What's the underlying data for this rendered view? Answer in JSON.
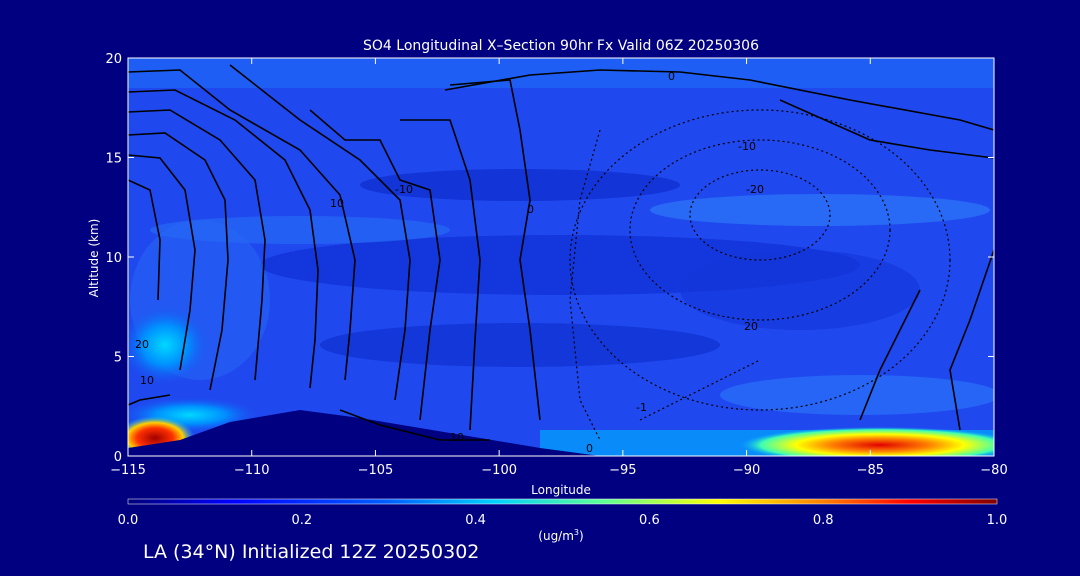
{
  "chart_data": {
    "type": "heatmap",
    "title": "SO4 Longitudinal X–Section 90hr  Fx Valid 06Z 20250306",
    "xlabel": "Longitude",
    "ylabel": "Altitude (km)",
    "xlim": [
      -115,
      -80
    ],
    "ylim": [
      0,
      20
    ],
    "xticks": [
      -115,
      -110,
      -105,
      -100,
      -95,
      -90,
      -85,
      -80
    ],
    "yticks": [
      0,
      5,
      10,
      15,
      20
    ],
    "colorbar": {
      "min": 0.0,
      "max": 1.0,
      "ticks": [
        "0.0",
        "0.2",
        "0.4",
        "0.6",
        "0.8",
        "1.0"
      ],
      "units_label": "(ug/m",
      "units_sup": "3",
      "units_tail": ")"
    },
    "contour_labels": [
      "0",
      "-10",
      "-20",
      "10",
      "20",
      "10",
      "0",
      "-1",
      "-10",
      "-20",
      "20",
      "10",
      "0",
      "-10"
    ],
    "hotspots": [
      {
        "name": "surface-max-west",
        "lon": -114,
        "alt_km": 0.8,
        "value": 1.0
      },
      {
        "name": "surface-max-east",
        "lon": -86,
        "alt_km": 0.4,
        "value": 0.85
      },
      {
        "name": "elevated-west",
        "lon": -114,
        "alt_km": 5.5,
        "value": 0.45
      }
    ]
  },
  "footer": {
    "text": "LA (34°N) Initialized 12Z 20250302"
  },
  "colors": {
    "background": "#000080",
    "low": "#1a2bd8",
    "mid": "#00a8ff",
    "high": "#ffd400",
    "max": "#c00000"
  }
}
